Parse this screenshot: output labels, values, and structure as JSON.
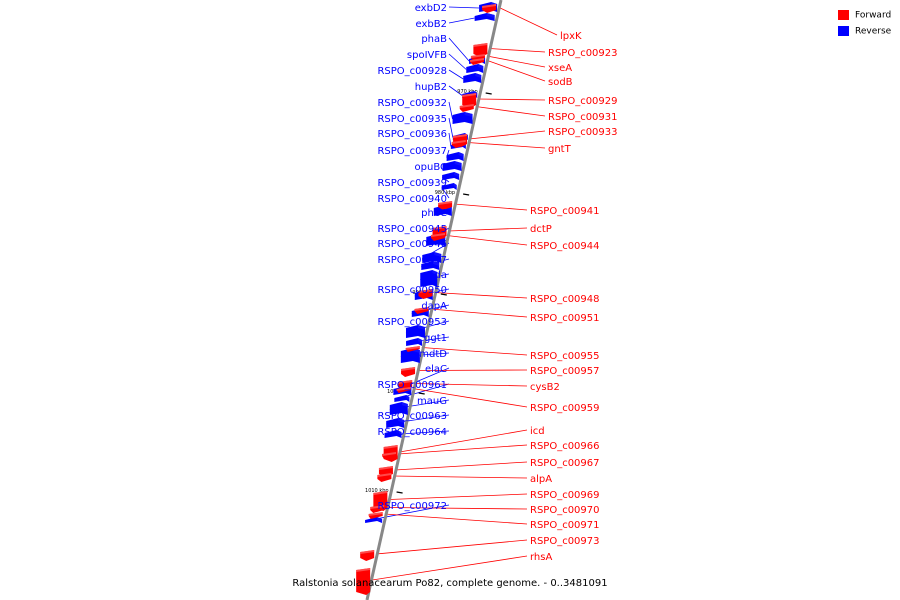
{
  "title": "Ralstonia solanacearum Po82, complete genome. - 0..3481091",
  "legend": {
    "forward": {
      "label": "Forward",
      "color": "#ff0000"
    },
    "reverse": {
      "label": "Reverse",
      "color": "#0000ff"
    }
  },
  "ticks": [
    "970 kbp",
    "980 kbp",
    "990 kbp",
    "1000 kbp",
    "1010 kbp"
  ],
  "reverse_genes": [
    "exbD2",
    "exbB2",
    "phaB",
    "spoIVFB",
    "RSPO_c00928",
    "hupB2",
    "RSPO_c00932",
    "RSPO_c00935",
    "RSPO_c00936",
    "RSPO_c00937",
    "opuBC",
    "RSPO_c00939",
    "RSPO_c00940",
    "pheC",
    "RSPO_c00945",
    "RSPO_c00946",
    "RSPO_c00947",
    "ada",
    "RSPO_c00950",
    "dapA",
    "RSPO_c00953",
    "ggt1",
    "mdtD",
    "elaC",
    "RSPO_c00961",
    "mauG",
    "RSPO_c00963",
    "RSPO_c00964",
    "RSPO_c00972"
  ],
  "forward_genes": [
    "lpxK",
    "RSPO_c00923",
    "xseA",
    "sodB",
    "RSPO_c00929",
    "RSPO_c00931",
    "RSPO_c00933",
    "gntT",
    "RSPO_c00941",
    "dctP",
    "RSPO_c00944",
    "RSPO_c00948",
    "RSPO_c00951",
    "RSPO_c00955",
    "RSPO_c00957",
    "cysB2",
    "RSPO_c00959",
    "icd",
    "RSPO_c00966",
    "RSPO_c00967",
    "alpA",
    "RSPO_c00969",
    "RSPO_c00970",
    "RSPO_c00971",
    "RSPO_c00973",
    "rhsA"
  ]
}
